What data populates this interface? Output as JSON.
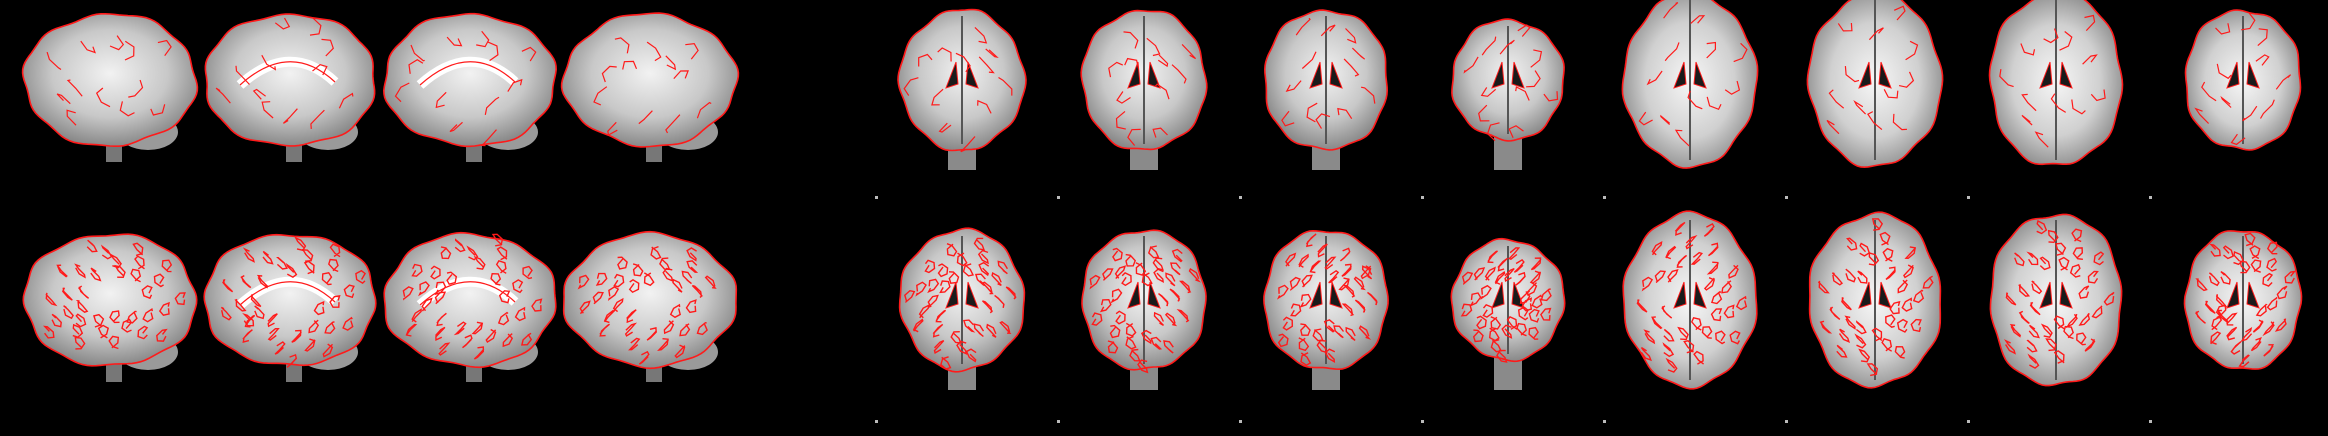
{
  "figure": {
    "background": "#000000",
    "outline_color": "#ff1a1a",
    "rows": [
      {
        "name": "coarse-outline",
        "outline_detail": "coarse",
        "panels": [
          {
            "view": "sagittal",
            "variant": "lateral"
          },
          {
            "view": "sagittal",
            "variant": "medial"
          },
          {
            "view": "sagittal",
            "variant": "medial"
          },
          {
            "view": "sagittal",
            "variant": "lateral"
          },
          {
            "view": "coronal",
            "variant": "posterior"
          },
          {
            "view": "coronal",
            "variant": "mid"
          },
          {
            "view": "coronal",
            "variant": "mid"
          },
          {
            "view": "coronal",
            "variant": "anterior"
          },
          {
            "view": "axial",
            "variant": "inferior"
          },
          {
            "view": "axial",
            "variant": "mid"
          },
          {
            "view": "axial",
            "variant": "superior"
          },
          {
            "view": "axial",
            "variant": "vertex"
          }
        ]
      },
      {
        "name": "fine-outline",
        "outline_detail": "fine",
        "panels": [
          {
            "view": "sagittal",
            "variant": "lateral"
          },
          {
            "view": "sagittal",
            "variant": "medial"
          },
          {
            "view": "sagittal",
            "variant": "medial"
          },
          {
            "view": "sagittal",
            "variant": "lateral"
          },
          {
            "view": "coronal",
            "variant": "posterior"
          },
          {
            "view": "coronal",
            "variant": "mid"
          },
          {
            "view": "coronal",
            "variant": "mid"
          },
          {
            "view": "coronal",
            "variant": "anterior"
          },
          {
            "view": "axial",
            "variant": "inferior"
          },
          {
            "view": "axial",
            "variant": "mid"
          },
          {
            "view": "axial",
            "variant": "superior"
          },
          {
            "view": "axial",
            "variant": "vertex"
          }
        ]
      }
    ]
  }
}
